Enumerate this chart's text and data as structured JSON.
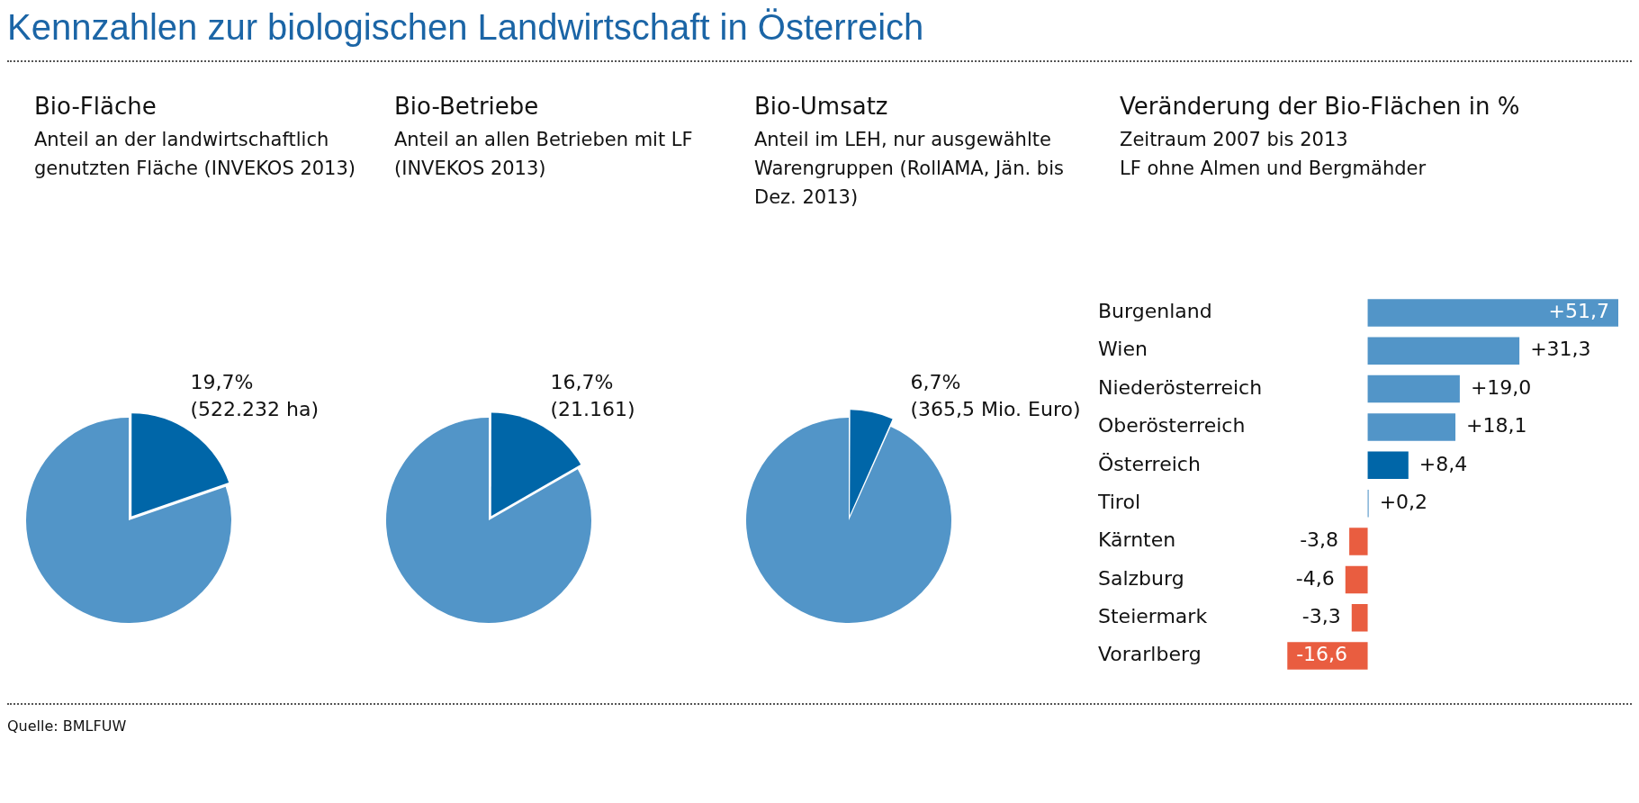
{
  "chart_data": [
    {
      "type": "other",
      "title": "Kennzahlen zur biologischen Landwirtschaft in Österreich",
      "annotations": [
        "Quelle: BMLFUW"
      ]
    },
    {
      "type": "pie",
      "title": "Bio-Fläche",
      "subtitle": "Anteil an der landwirtschaftlich genutzten Fläche (INVEKOS 2013)",
      "categories": [
        null,
        null
      ],
      "values": [
        19.7,
        80.3
      ],
      "colors": [
        "#0066a8",
        "#5295c8"
      ],
      "value_labels": [
        "19,7%\n(522.232 ha)",
        null
      ]
    },
    {
      "type": "pie",
      "title": "Bio-Betriebe",
      "subtitle": "Anteil an allen Betrieben mit LF (INVEKOS 2013)",
      "categories": [
        null,
        null
      ],
      "values": [
        16.7,
        83.3
      ],
      "colors": [
        "#0066a8",
        "#5295c8"
      ],
      "value_labels": [
        "16,7%\n(21.161)",
        null
      ]
    },
    {
      "type": "pie",
      "title": "Bio-Umsatz",
      "subtitle": "Anteil im LEH, nur ausgewählte Warengruppen (RollAMA, Jän. bis Dez. 2013)",
      "categories": [
        null,
        null
      ],
      "values": [
        6.7,
        93.3
      ],
      "colors": [
        "#0066a8",
        "#5295c8"
      ],
      "value_labels": [
        "6,7%\n(365,5 Mio. Euro)",
        null
      ]
    },
    {
      "type": "bar",
      "orientation": "horizontal",
      "title": "Veränderung der Bio-Flächen in %",
      "subtitle": "Zeitraum 2007 bis 2013\nLF ohne Almen und Bergmähder",
      "categories": [
        "Burgenland",
        "Wien",
        "Niederösterreich",
        "Oberösterreich",
        "Österreich",
        "Tirol",
        "Kärnten",
        "Salzburg",
        "Steiermark",
        "Vorarlberg"
      ],
      "values": [
        51.7,
        31.3,
        19.0,
        18.1,
        8.4,
        0.2,
        -3.8,
        -4.6,
        -3.3,
        -16.6
      ],
      "colors": [
        "#5295c8",
        "#5295c8",
        "#5295c8",
        "#5295c8",
        "#0066a8",
        "#5295c8",
        "#e95d40",
        "#e95d40",
        "#e95d40",
        "#e95d40"
      ],
      "value_labels": [
        "+51,7",
        "+31,3",
        "+19,0",
        "+18,1",
        "+8,4",
        "+0,2",
        "-3,8",
        "-4,6",
        "-3,3",
        "-16,6"
      ]
    }
  ]
}
